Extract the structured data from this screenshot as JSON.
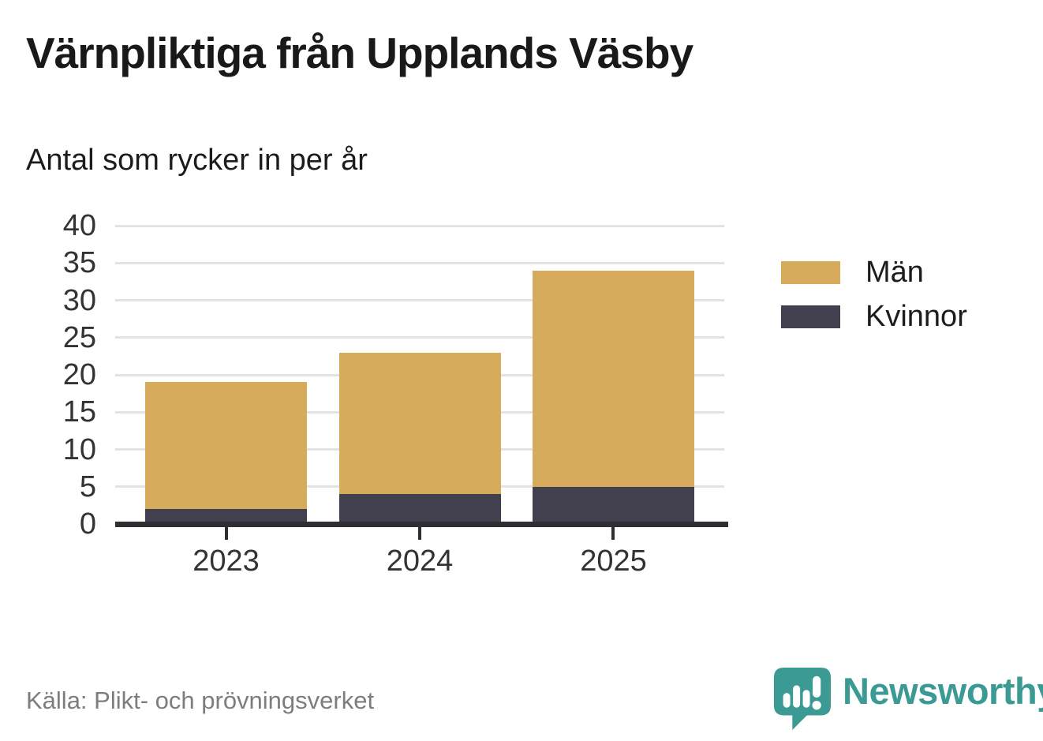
{
  "title": "Värnpliktiga från Upplands Väsby",
  "subtitle": "Antal som rycker in per år",
  "source": "Källa: Plikt- och prövningsverket",
  "brand": {
    "name": "Newsworthy",
    "color": "#3b9a94"
  },
  "colors": {
    "men": "#d7ab5c",
    "women": "#42404e",
    "grid": "#e3e3e3",
    "axis": "#2f2e33",
    "tick_text": "#333333",
    "title_text": "#191919",
    "muted_text": "#7d7d7d"
  },
  "chart_data": {
    "type": "bar",
    "stacked": true,
    "title": "Värnpliktiga från Upplands Väsby",
    "subtitle": "Antal som rycker in per år",
    "categories": [
      "2023",
      "2024",
      "2025"
    ],
    "series": [
      {
        "name": "Män",
        "color_key": "men",
        "values": [
          17,
          19,
          29
        ]
      },
      {
        "name": "Kvinnor",
        "color_key": "women",
        "values": [
          2,
          4,
          5
        ]
      }
    ],
    "stack_bottom_to_top": [
      "Kvinnor",
      "Män"
    ],
    "totals": [
      19,
      23,
      34
    ],
    "xlabel": "",
    "ylabel": "",
    "ylim": [
      0,
      40
    ],
    "yticks": [
      0,
      5,
      10,
      15,
      20,
      25,
      30,
      35,
      40
    ],
    "grid": true,
    "legend_position": "right",
    "legend": [
      "Män",
      "Kvinnor"
    ]
  }
}
